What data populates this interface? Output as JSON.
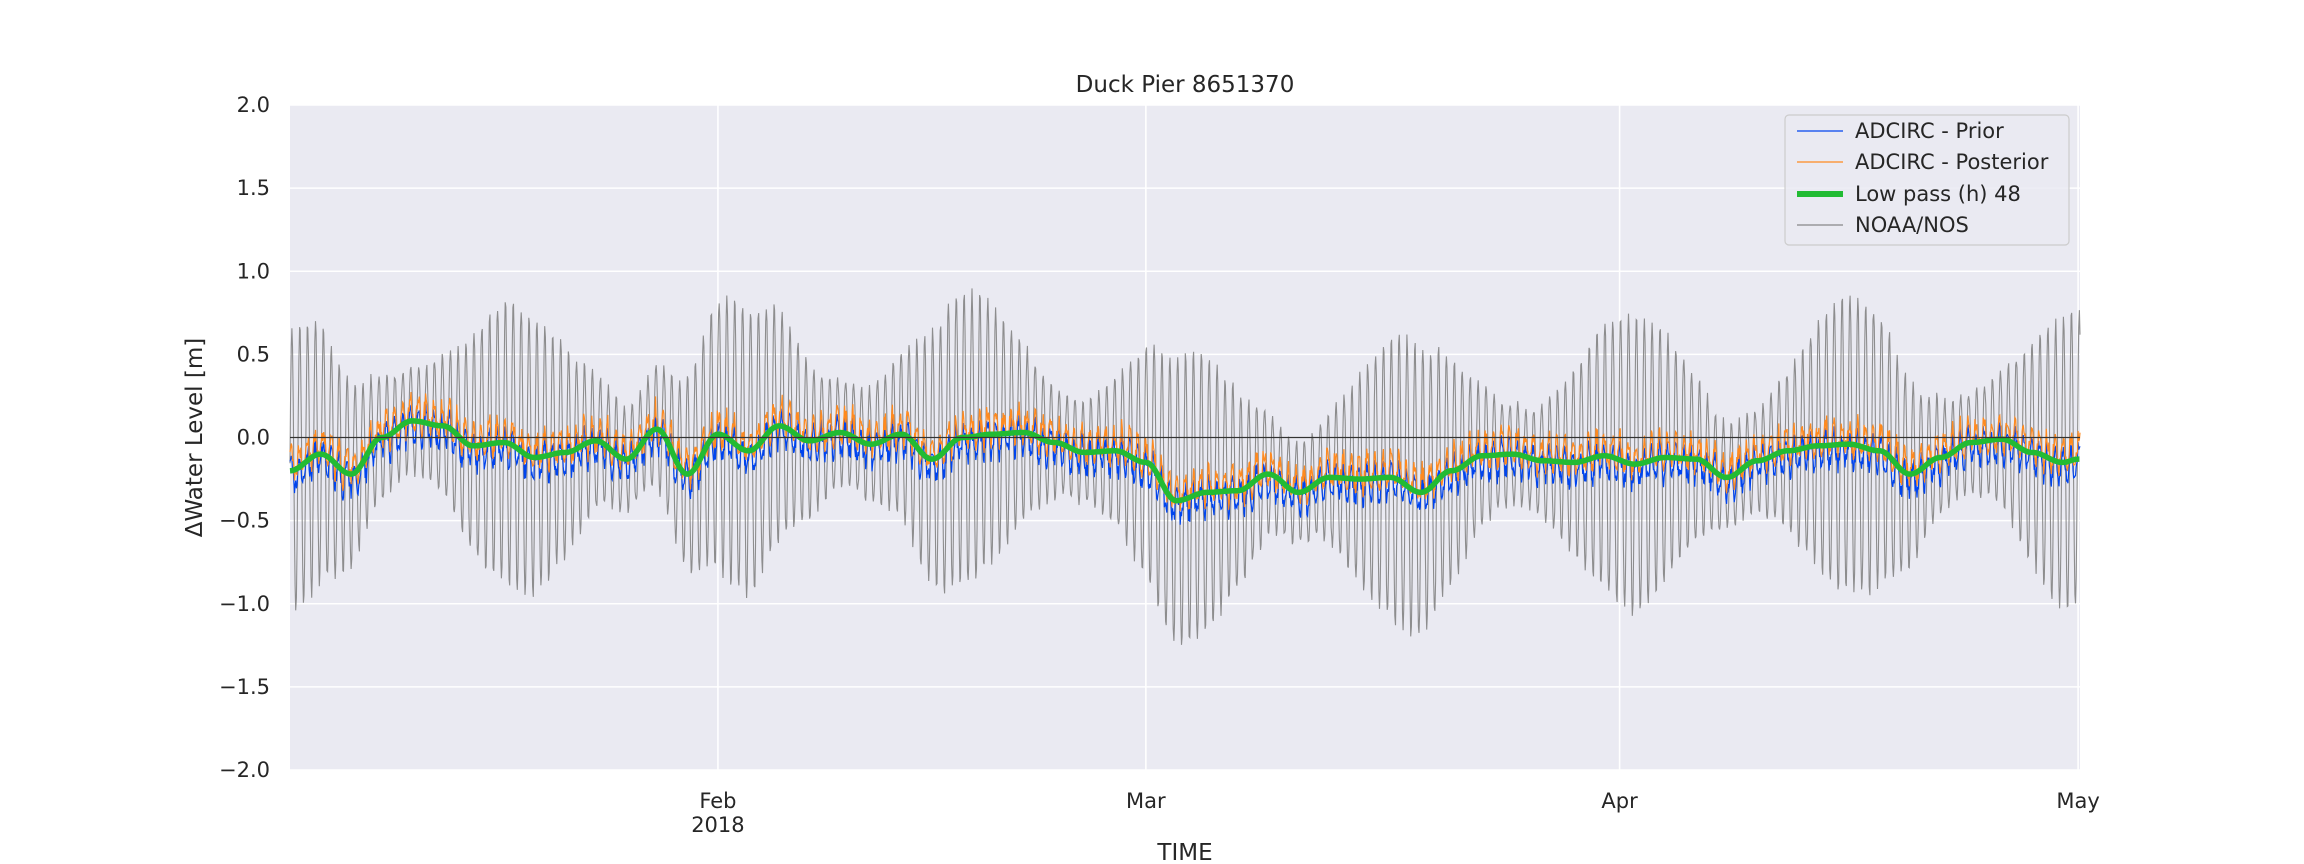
{
  "chart_data": {
    "type": "line",
    "title": "Duck Pier  8651370",
    "xlabel": "TIME",
    "ylabel": "ΔWater Level [m]",
    "ylim": [
      -2.0,
      2.0
    ],
    "xlim": [
      "2018-01-04",
      "2018-05-01"
    ],
    "y_ticks": [
      "−2.0",
      "−1.5",
      "−1.0",
      "−0.5",
      "0.0",
      "0.5",
      "1.0",
      "1.5",
      "2.0"
    ],
    "y_tick_values": [
      -2.0,
      -1.5,
      -1.0,
      -0.5,
      0.0,
      0.5,
      1.0,
      1.5,
      2.0
    ],
    "x_ticks": [
      {
        "date": "2018-02-01",
        "label": "Feb",
        "sublabel": "2018"
      },
      {
        "date": "2018-03-01",
        "label": "Mar",
        "sublabel": ""
      },
      {
        "date": "2018-04-01",
        "label": "Apr",
        "sublabel": ""
      },
      {
        "date": "2018-05-01",
        "label": "May",
        "sublabel": ""
      }
    ],
    "grid": true,
    "zero_line": true,
    "legend_position": "upper right",
    "background": "#eaeaf2",
    "series": [
      {
        "name": "ADCIRC - Prior",
        "color": "#0044ee",
        "style": "thin line",
        "kind": "prior"
      },
      {
        "name": "ADCIRC - Posterior",
        "color": "#ff8a1f",
        "style": "thin line",
        "kind": "posterior"
      },
      {
        "name": "Low pass (h) 48",
        "color": "#22bb33",
        "style": "thick line",
        "kind": "lowpass",
        "x": [
          "2018-01-04",
          "2018-01-06",
          "2018-01-08",
          "2018-01-10",
          "2018-01-12",
          "2018-01-14",
          "2018-01-16",
          "2018-01-18",
          "2018-01-20",
          "2018-01-22",
          "2018-01-24",
          "2018-01-26",
          "2018-01-28",
          "2018-01-30",
          "2018-02-01",
          "2018-02-03",
          "2018-02-05",
          "2018-02-07",
          "2018-02-09",
          "2018-02-11",
          "2018-02-13",
          "2018-02-15",
          "2018-02-17",
          "2018-02-19",
          "2018-02-21",
          "2018-02-23",
          "2018-02-25",
          "2018-02-27",
          "2018-03-01",
          "2018-03-03",
          "2018-03-05",
          "2018-03-07",
          "2018-03-09",
          "2018-03-11",
          "2018-03-13",
          "2018-03-15",
          "2018-03-17",
          "2018-03-19",
          "2018-03-21",
          "2018-03-23",
          "2018-03-25",
          "2018-03-27",
          "2018-03-29",
          "2018-03-31",
          "2018-04-02",
          "2018-04-04",
          "2018-04-06",
          "2018-04-08",
          "2018-04-10",
          "2018-04-12",
          "2018-04-14",
          "2018-04-16",
          "2018-04-18",
          "2018-04-20",
          "2018-04-22",
          "2018-04-24",
          "2018-04-26",
          "2018-04-28",
          "2018-04-30",
          "2018-05-01"
        ],
        "values": [
          -0.2,
          -0.1,
          -0.22,
          0.0,
          0.1,
          0.07,
          -0.05,
          -0.03,
          -0.12,
          -0.09,
          -0.02,
          -0.13,
          0.05,
          -0.22,
          0.02,
          -0.08,
          0.07,
          -0.02,
          0.03,
          -0.04,
          0.02,
          -0.13,
          0.0,
          0.02,
          0.03,
          -0.03,
          -0.09,
          -0.08,
          -0.15,
          -0.38,
          -0.33,
          -0.32,
          -0.22,
          -0.33,
          -0.24,
          -0.25,
          -0.24,
          -0.33,
          -0.2,
          -0.11,
          -0.1,
          -0.14,
          -0.15,
          -0.11,
          -0.16,
          -0.12,
          -0.13,
          -0.24,
          -0.14,
          -0.08,
          -0.05,
          -0.04,
          -0.08,
          -0.22,
          -0.12,
          -0.03,
          -0.01,
          -0.09,
          -0.15,
          -0.13
        ]
      },
      {
        "name": "NOAA/NOS",
        "color": "#888888",
        "style": "thin line",
        "kind": "observed"
      }
    ]
  }
}
